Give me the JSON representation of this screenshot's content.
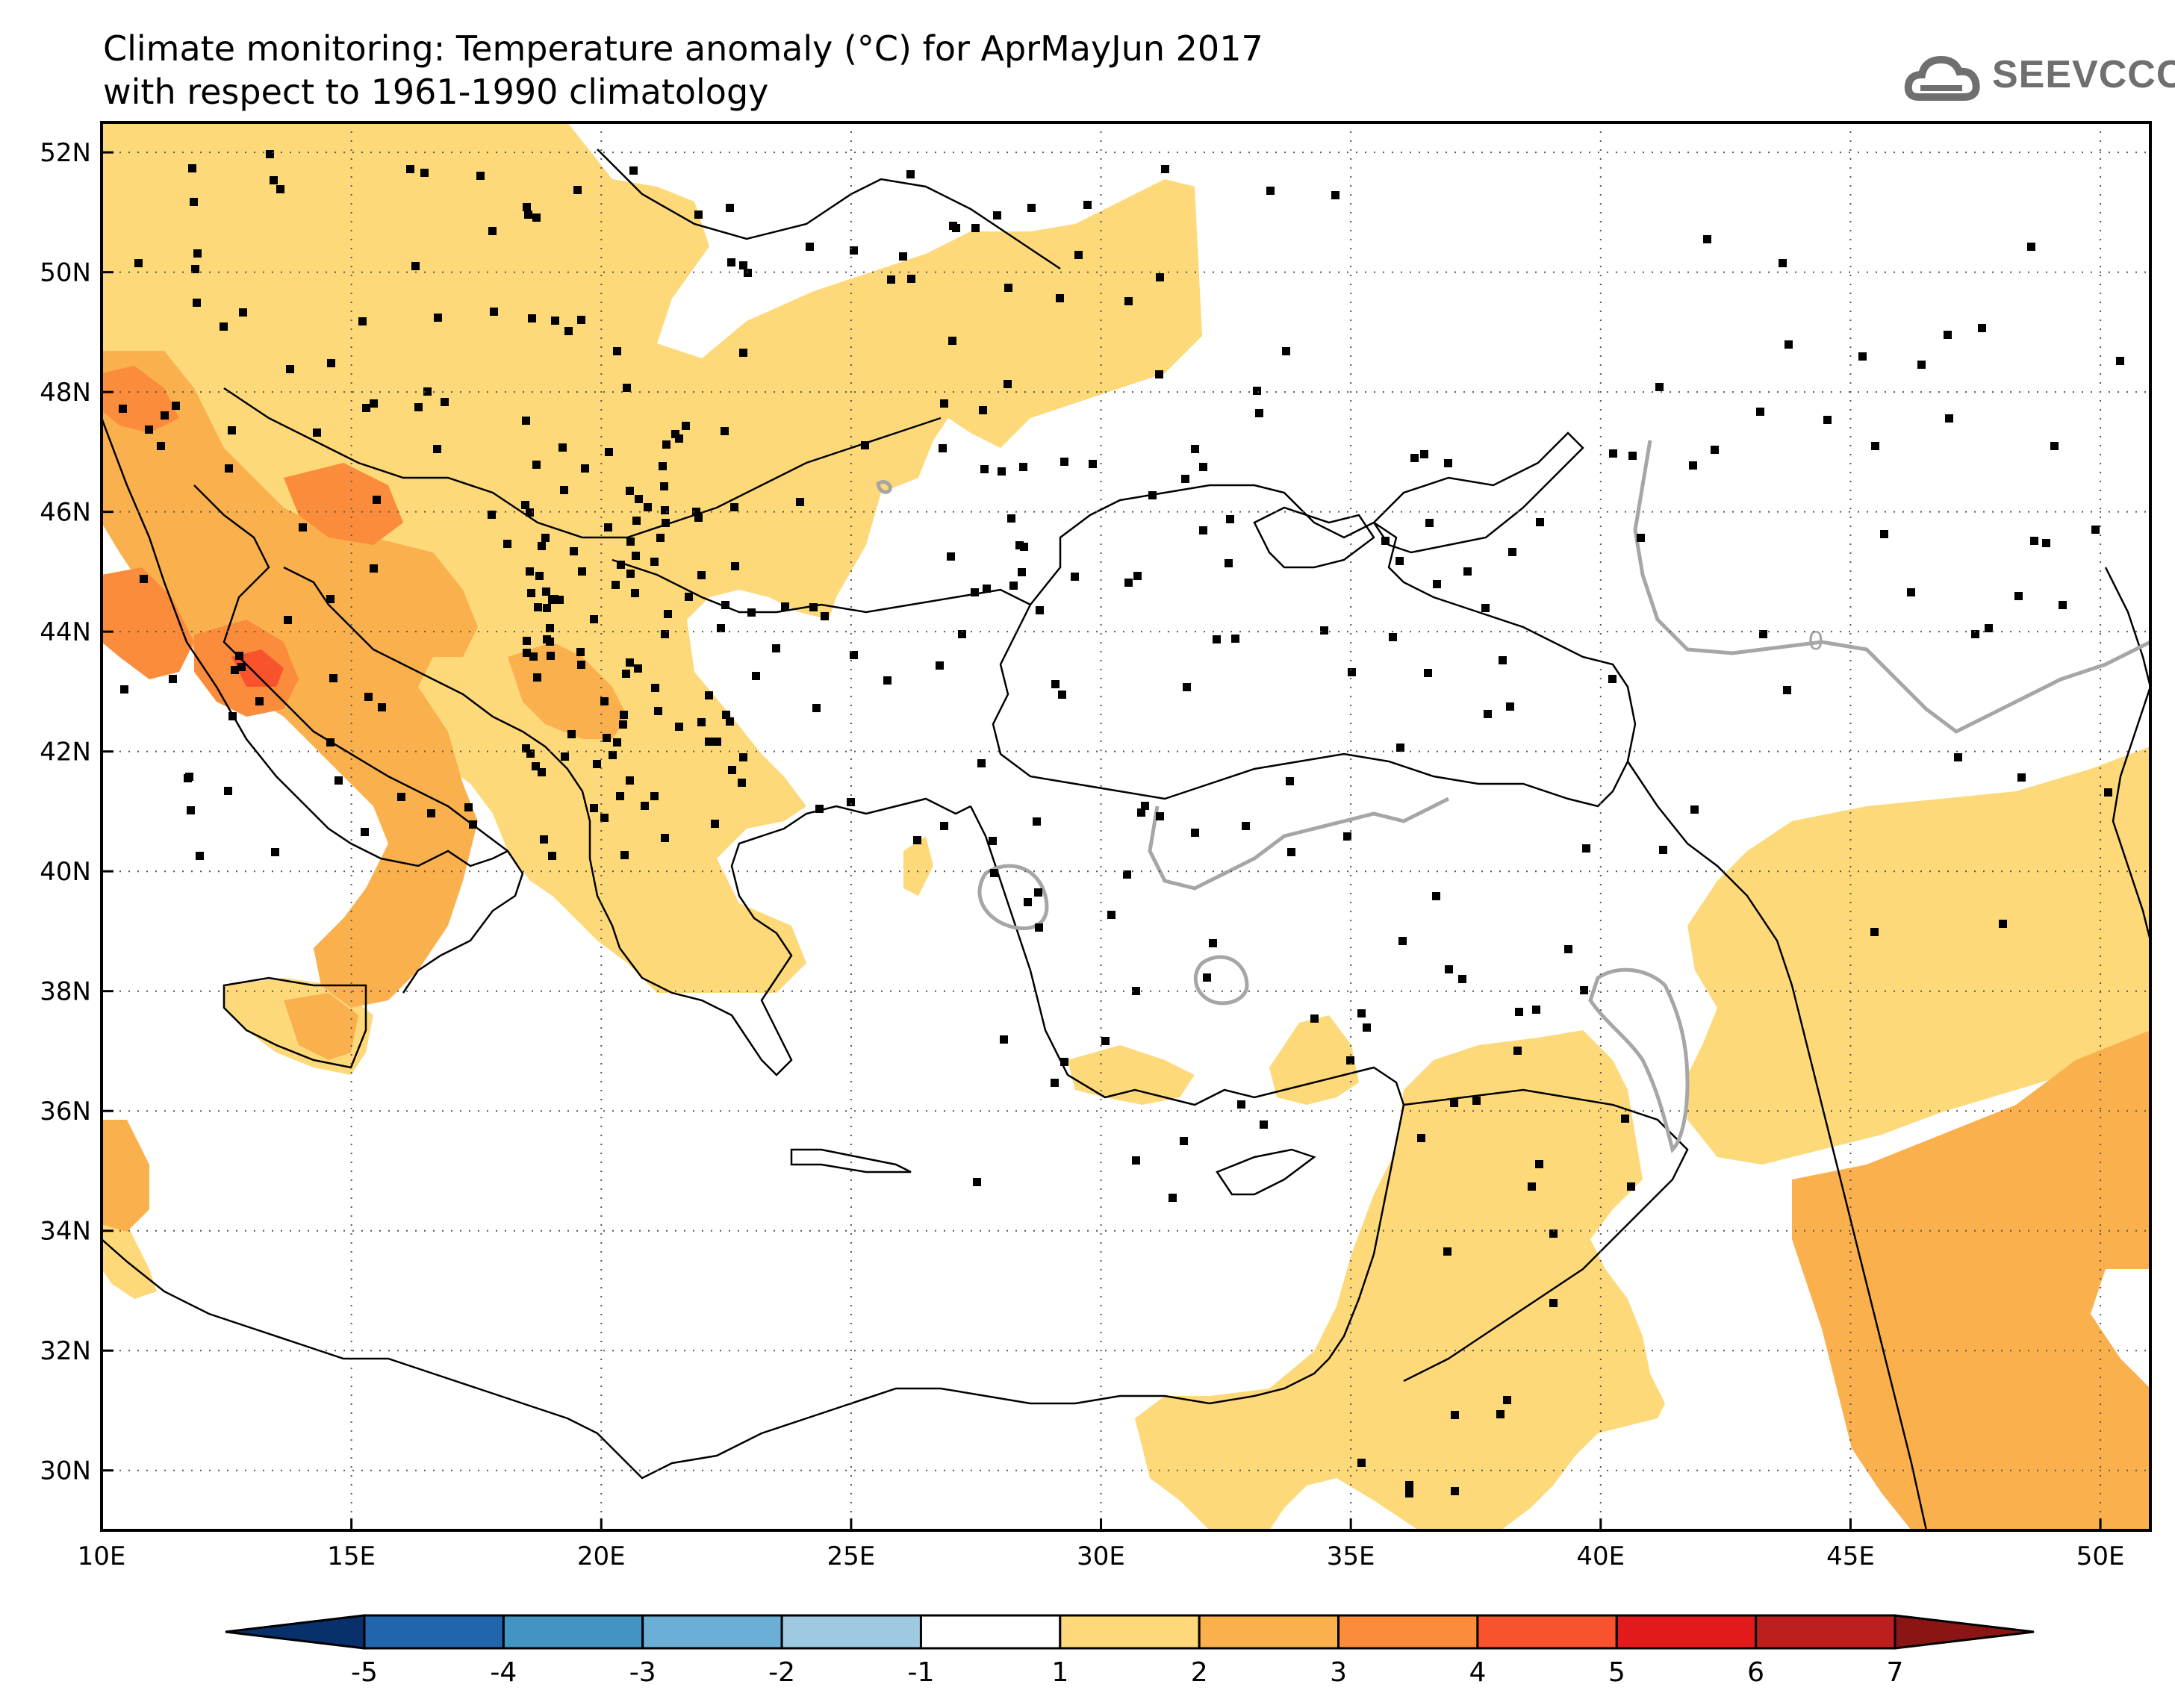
{
  "title": {
    "line1": "Climate monitoring: Temperature anomaly (°C) for AprMayJun 2017",
    "line2": "with respect to 1961-1990 climatology"
  },
  "logo": {
    "text": "SEEVCCC",
    "icon": "cloud-icon"
  },
  "map": {
    "lon_range": [
      10,
      51
    ],
    "lat_range": [
      29,
      52.5
    ],
    "lon_ticks": [
      "10E",
      "15E",
      "20E",
      "25E",
      "30E",
      "35E",
      "40E",
      "45E",
      "50E"
    ],
    "lat_ticks": [
      "30N",
      "32N",
      "34N",
      "36N",
      "38N",
      "40N",
      "42N",
      "44N",
      "46N",
      "48N",
      "50N",
      "52N"
    ],
    "grid": "dotted",
    "zero_contour_label": "0"
  },
  "colorbar": {
    "labels": [
      "-5",
      "-4",
      "-3",
      "-2",
      "-1",
      "1",
      "2",
      "3",
      "4",
      "5",
      "6",
      "7"
    ],
    "colors": [
      "#08306b",
      "#2166ac",
      "#4393c3",
      "#6baed6",
      "#9ecae1",
      "#ffffff",
      "#fdd97a",
      "#fbb04e",
      "#fb8c3c",
      "#f9532d",
      "#e31a1c",
      "#bd1f1f",
      "#8b1414"
    ]
  },
  "colors": {
    "anom_1_2": "#fdd97a",
    "anom_2_3": "#fbb04e",
    "anom_3_4": "#fb8c3c",
    "anom_4_5": "#f9532d",
    "coast": "#000000",
    "zero_line": "#a6a6a6"
  }
}
